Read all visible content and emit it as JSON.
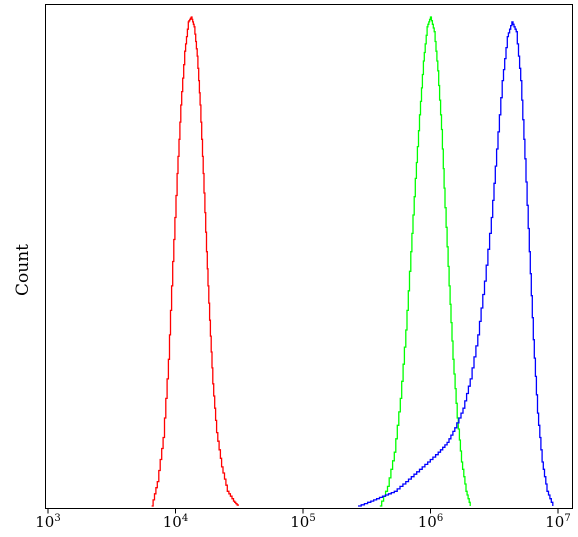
{
  "chart_data": {
    "type": "line",
    "title": "",
    "xlabel": "",
    "ylabel": "Count",
    "x_scale": "log",
    "xlim": [
      1000,
      10000000
    ],
    "x_ticks": [
      {
        "value": 1000,
        "base": "10",
        "exp": "3"
      },
      {
        "value": 10000,
        "base": "10",
        "exp": "4"
      },
      {
        "value": 100000,
        "base": "10",
        "exp": "5"
      },
      {
        "value": 1000000,
        "base": "10",
        "exp": "6"
      },
      {
        "value": 10000000,
        "base": "10",
        "exp": "7"
      }
    ],
    "ylim": [
      0,
      1
    ],
    "grid": false,
    "series": [
      {
        "color": "#ff0000",
        "x": [
          6500,
          7200,
          8000,
          8800,
          9500,
          10300,
          11000,
          11800,
          12600,
          13300,
          14000,
          14800,
          15600,
          16500,
          17500,
          18500,
          19600,
          21000,
          23000,
          25500,
          28500,
          31000
        ],
        "y": [
          0.0,
          0.05,
          0.14,
          0.3,
          0.5,
          0.68,
          0.82,
          0.93,
          0.99,
          1.0,
          0.98,
          0.92,
          0.82,
          0.68,
          0.52,
          0.38,
          0.25,
          0.15,
          0.08,
          0.03,
          0.01,
          0.0
        ]
      },
      {
        "color": "#00ff00",
        "x": [
          400000,
          460000,
          520000,
          580000,
          640000,
          700000,
          760000,
          820000,
          880000,
          940000,
          1000000,
          1070000,
          1140000,
          1220000,
          1300000,
          1400000,
          1500000,
          1620000,
          1750000,
          1900000,
          2050000
        ],
        "y": [
          0.0,
          0.04,
          0.11,
          0.22,
          0.36,
          0.52,
          0.67,
          0.8,
          0.91,
          0.98,
          1.0,
          0.97,
          0.89,
          0.77,
          0.61,
          0.45,
          0.3,
          0.18,
          0.09,
          0.03,
          0.0
        ]
      },
      {
        "color": "#0000ff",
        "x": [
          270000,
          340000,
          420000,
          520000,
          640000,
          780000,
          950000,
          1150000,
          1350000,
          1550000,
          1800000,
          2050000,
          2350000,
          2650000,
          3000000,
          3300000,
          3650000,
          4000000,
          4350000,
          4700000,
          5100000,
          5500000,
          5950000,
          6400000,
          6900000,
          7500000,
          8200000,
          9100000
        ],
        "y": [
          0.0,
          0.01,
          0.02,
          0.03,
          0.05,
          0.07,
          0.09,
          0.11,
          0.13,
          0.16,
          0.2,
          0.26,
          0.35,
          0.46,
          0.59,
          0.73,
          0.87,
          0.96,
          0.99,
          0.97,
          0.87,
          0.71,
          0.52,
          0.34,
          0.19,
          0.09,
          0.03,
          0.0
        ]
      }
    ]
  }
}
